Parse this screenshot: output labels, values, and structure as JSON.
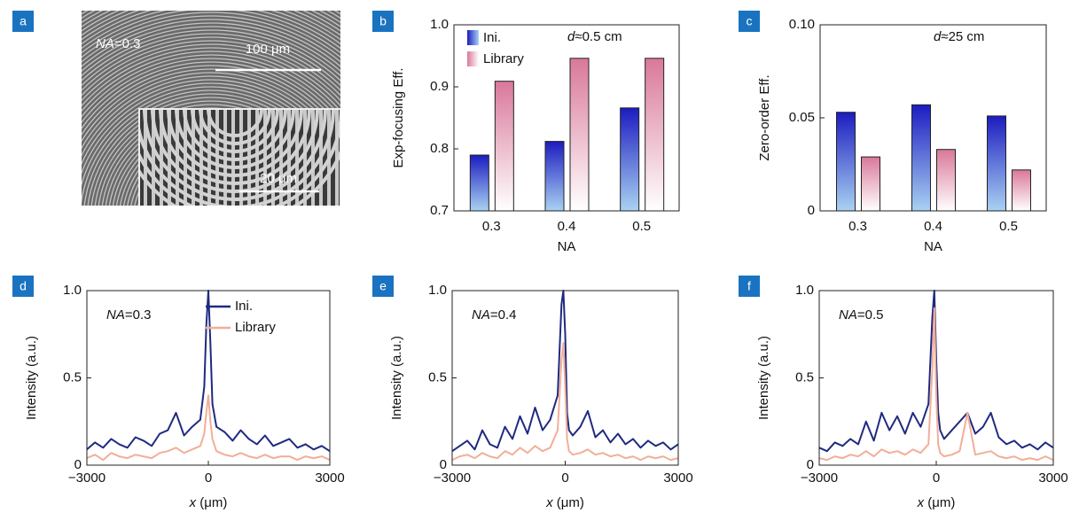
{
  "image_panel": {
    "label": "a",
    "annotation_parts": [
      {
        "text": "NA",
        "italic": true
      },
      {
        "text": "=0.3"
      }
    ],
    "scale_bar_large": "100 μm",
    "scale_bar_small": "20 μm"
  },
  "chart_data": [
    {
      "type": "bar",
      "panel_label": "b",
      "xlabel": "NA",
      "ylabel": "Exp-focusing Eff.",
      "annotation_parts": [
        {
          "text": "d",
          "italic": true
        },
        {
          "text": "≈0.5 cm"
        }
      ],
      "categories": [
        "0.3",
        "0.4",
        "0.5"
      ],
      "series": [
        {
          "name": "Ini.",
          "color": "#1c1cc0",
          "color_end": "#a9d2f2",
          "values": [
            0.79,
            0.812,
            0.866
          ]
        },
        {
          "name": "Library",
          "color": "#d9789a",
          "color_end": "#ffffff",
          "values": [
            0.909,
            0.946,
            0.946
          ]
        }
      ],
      "ylim": [
        0.7,
        1.0
      ],
      "yticks": [
        0.7,
        0.8,
        0.9,
        {
          "value": 1.0,
          "label": "1.0"
        }
      ],
      "legend": "upper left"
    },
    {
      "type": "bar",
      "panel_label": "c",
      "xlabel": "NA",
      "ylabel": "Zero-order Eff.",
      "annotation_parts": [
        {
          "text": "d",
          "italic": true
        },
        {
          "text": "≈25 cm"
        }
      ],
      "categories": [
        "0.3",
        "0.4",
        "0.5"
      ],
      "series": [
        {
          "name": "Ini.",
          "color": "#1c1cc0",
          "color_end": "#a9d2f2",
          "values": [
            0.053,
            0.057,
            0.051
          ]
        },
        {
          "name": "Library",
          "color": "#d9789a",
          "color_end": "#ffffff",
          "values": [
            0.029,
            0.033,
            0.022
          ]
        }
      ],
      "ylim": [
        0,
        0.1
      ],
      "yticks": [
        0,
        0.05,
        {
          "value": 0.1,
          "label": "0.10"
        }
      ]
    },
    {
      "type": "line",
      "panel_label": "d",
      "xlabel_parts": [
        {
          "text": "x",
          "italic": true
        },
        {
          "text": " (μm)"
        }
      ],
      "ylabel": "Intensity (a.u.)",
      "annotation_parts": [
        {
          "text": "NA",
          "italic": true
        },
        {
          "text": "=0.3"
        }
      ],
      "x": [
        -3000,
        -2800,
        -2600,
        -2400,
        -2200,
        -2000,
        -1800,
        -1600,
        -1400,
        -1200,
        -1000,
        -800,
        -600,
        -400,
        -200,
        -100,
        -50,
        0,
        50,
        100,
        200,
        400,
        600,
        800,
        1000,
        1200,
        1400,
        1600,
        1800,
        2000,
        2200,
        2400,
        2600,
        2800,
        3000
      ],
      "series": [
        {
          "name": "Ini.",
          "color": "#1f2a80",
          "values": [
            0.09,
            0.13,
            0.1,
            0.15,
            0.12,
            0.1,
            0.16,
            0.14,
            0.11,
            0.18,
            0.2,
            0.3,
            0.17,
            0.22,
            0.26,
            0.45,
            0.8,
            1.0,
            0.7,
            0.35,
            0.22,
            0.19,
            0.14,
            0.2,
            0.15,
            0.12,
            0.17,
            0.11,
            0.13,
            0.15,
            0.1,
            0.12,
            0.09,
            0.11,
            0.08
          ]
        },
        {
          "name": "Library",
          "color": "#f2ae98",
          "values": [
            0.04,
            0.06,
            0.03,
            0.07,
            0.05,
            0.04,
            0.06,
            0.05,
            0.04,
            0.07,
            0.08,
            0.1,
            0.07,
            0.09,
            0.11,
            0.18,
            0.3,
            0.4,
            0.25,
            0.15,
            0.08,
            0.06,
            0.05,
            0.07,
            0.05,
            0.04,
            0.06,
            0.04,
            0.05,
            0.05,
            0.03,
            0.05,
            0.04,
            0.05,
            0.03
          ]
        }
      ],
      "xlim": [
        -3000,
        3000
      ],
      "xticks": [
        {
          "value": -3000,
          "label": "−3000"
        },
        0,
        3000
      ],
      "ylim": [
        0,
        1
      ],
      "yticks": [
        0,
        0.5,
        {
          "value": 1,
          "label": "1.0"
        }
      ],
      "legend": "upper center"
    },
    {
      "type": "line",
      "panel_label": "e",
      "xlabel_parts": [
        {
          "text": "x",
          "italic": true
        },
        {
          "text": " (μm)"
        }
      ],
      "ylabel": "Intensity (a.u.)",
      "annotation_parts": [
        {
          "text": "NA",
          "italic": true
        },
        {
          "text": "=0.4"
        }
      ],
      "x": [
        -3000,
        -2800,
        -2600,
        -2400,
        -2200,
        -2000,
        -1800,
        -1600,
        -1400,
        -1200,
        -1000,
        -800,
        -600,
        -400,
        -200,
        -100,
        -50,
        0,
        50,
        100,
        200,
        400,
        600,
        800,
        1000,
        1200,
        1400,
        1600,
        1800,
        2000,
        2200,
        2400,
        2600,
        2800,
        3000
      ],
      "series": [
        {
          "name": "Ini.",
          "color": "#1f2a80",
          "values": [
            0.08,
            0.11,
            0.14,
            0.09,
            0.2,
            0.12,
            0.1,
            0.22,
            0.15,
            0.28,
            0.18,
            0.33,
            0.2,
            0.26,
            0.4,
            0.92,
            1.0,
            0.75,
            0.3,
            0.2,
            0.17,
            0.22,
            0.31,
            0.16,
            0.2,
            0.13,
            0.18,
            0.12,
            0.15,
            0.1,
            0.14,
            0.11,
            0.13,
            0.09,
            0.12
          ]
        },
        {
          "name": "Library",
          "color": "#f2ae98",
          "values": [
            0.03,
            0.05,
            0.06,
            0.04,
            0.07,
            0.05,
            0.04,
            0.08,
            0.06,
            0.1,
            0.07,
            0.11,
            0.08,
            0.1,
            0.2,
            0.6,
            0.7,
            0.45,
            0.15,
            0.08,
            0.06,
            0.07,
            0.09,
            0.06,
            0.07,
            0.05,
            0.06,
            0.04,
            0.05,
            0.03,
            0.05,
            0.04,
            0.05,
            0.03,
            0.04
          ]
        }
      ],
      "xlim": [
        -3000,
        3000
      ],
      "xticks": [
        {
          "value": -3000,
          "label": "−3000"
        },
        0,
        3000
      ],
      "ylim": [
        0,
        1
      ],
      "yticks": [
        0,
        0.5,
        {
          "value": 1,
          "label": "1.0"
        }
      ]
    },
    {
      "type": "line",
      "panel_label": "f",
      "xlabel_parts": [
        {
          "text": "x",
          "italic": true
        },
        {
          "text": " (μm)"
        }
      ],
      "ylabel": "Intensity (a.u.)",
      "annotation_parts": [
        {
          "text": "NA",
          "italic": true
        },
        {
          "text": "=0.5"
        }
      ],
      "x": [
        -3000,
        -2800,
        -2600,
        -2400,
        -2200,
        -2000,
        -1800,
        -1600,
        -1400,
        -1200,
        -1000,
        -800,
        -600,
        -400,
        -200,
        -100,
        -50,
        0,
        50,
        100,
        200,
        400,
        600,
        800,
        1000,
        1200,
        1400,
        1600,
        1800,
        2000,
        2200,
        2400,
        2600,
        2800,
        3000
      ],
      "series": [
        {
          "name": "Ini.",
          "color": "#1f2a80",
          "values": [
            0.1,
            0.08,
            0.13,
            0.11,
            0.15,
            0.12,
            0.25,
            0.14,
            0.3,
            0.2,
            0.28,
            0.18,
            0.3,
            0.22,
            0.35,
            0.85,
            1.0,
            0.6,
            0.3,
            0.2,
            0.15,
            0.2,
            0.25,
            0.3,
            0.18,
            0.22,
            0.3,
            0.16,
            0.12,
            0.14,
            0.1,
            0.12,
            0.09,
            0.13,
            0.1
          ]
        },
        {
          "name": "Library",
          "color": "#f2ae98",
          "values": [
            0.04,
            0.03,
            0.05,
            0.04,
            0.06,
            0.05,
            0.08,
            0.05,
            0.09,
            0.07,
            0.08,
            0.06,
            0.09,
            0.07,
            0.12,
            0.55,
            0.9,
            0.4,
            0.12,
            0.07,
            0.05,
            0.06,
            0.08,
            0.3,
            0.06,
            0.07,
            0.08,
            0.05,
            0.04,
            0.05,
            0.03,
            0.04,
            0.03,
            0.05,
            0.03
          ]
        }
      ],
      "xlim": [
        -3000,
        3000
      ],
      "xticks": [
        {
          "value": -3000,
          "label": "−3000"
        },
        0,
        3000
      ],
      "ylim": [
        0,
        1
      ],
      "yticks": [
        0,
        0.5,
        {
          "value": 1,
          "label": "1.0"
        }
      ]
    }
  ]
}
